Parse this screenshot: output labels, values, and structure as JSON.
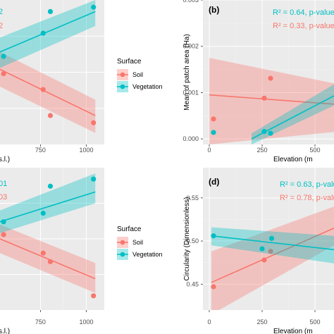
{
  "colors": {
    "soil": "#F8766D",
    "vegetation": "#00BFC4",
    "panel_bg": "#EBEBEB",
    "grid_major": "#FFFFFF",
    "grid_minor": "#F2F2F2"
  },
  "legend_top": {
    "title": "Surface",
    "items": [
      "Soil",
      "Vegetation"
    ]
  },
  "legend_bottom": {
    "title": "Surface",
    "items": [
      "Soil",
      "Vegetation"
    ]
  },
  "chart_data": [
    {
      "id": "a",
      "type": "scatter",
      "title": "",
      "xlabel": "s.l.)",
      "ylabel": "",
      "x_ticks": [
        "750",
        "1000"
      ],
      "xlim": [
        520,
        1100
      ],
      "ylim": [
        0,
        1
      ],
      "stat_labels": [
        {
          "text": "2",
          "series": "Vegetation"
        },
        {
          "text": "2",
          "series": "Soil"
        }
      ],
      "series": [
        {
          "name": "Soil",
          "x": [
            540,
            760,
            800,
            1040
          ],
          "y": [
            0.49,
            0.38,
            0.2,
            0.15
          ],
          "fit": {
            "x": [
              520,
              1050
            ],
            "y": [
              0.52,
              0.2
            ],
            "lower": [
              0.4,
              0.08
            ],
            "upper": [
              0.64,
              0.31
            ]
          }
        },
        {
          "name": "Vegetation",
          "x": [
            540,
            760,
            800,
            1040
          ],
          "y": [
            0.61,
            0.77,
            0.92,
            0.95
          ],
          "fit": {
            "x": [
              520,
              1050
            ],
            "y": [
              0.64,
              0.92
            ],
            "lower": [
              0.53,
              0.82
            ],
            "upper": [
              0.74,
              1.0
            ]
          }
        }
      ]
    },
    {
      "id": "b",
      "type": "scatter",
      "title": "",
      "tag": "(b)",
      "xlabel": "Elevation (m",
      "ylabel": "Mean of patch area (Ha)",
      "x_ticks": [
        "0",
        "250",
        "500"
      ],
      "xlim": [
        -30,
        590
      ],
      "y_ticks": [
        "0.000",
        "0.001",
        "0.002",
        "0.003"
      ],
      "ylim": [
        -0.00012,
        0.003
      ],
      "stat_labels": [
        {
          "text": "R² = 0.64, p-value",
          "series": "Vegetation"
        },
        {
          "text": "R² = 0.33, p-value",
          "series": "Soil"
        }
      ],
      "series": [
        {
          "name": "Soil",
          "x": [
            20,
            260,
            290
          ],
          "y": [
            0.00043,
            0.00088,
            0.00131
          ],
          "fit": {
            "x": [
              0,
              590
            ],
            "y": [
              0.00095,
              0.00075
            ],
            "lower": [
              -0.00012,
              0.00015
            ],
            "upper": [
              0.00175,
              0.0012
            ]
          }
        },
        {
          "name": "Vegetation",
          "x": [
            20,
            260,
            290
          ],
          "y": [
            0.00014,
            0.00016,
            0.00012
          ],
          "fit": {
            "x": [
              200,
              590
            ],
            "y": [
              0.0,
              0.00093
            ],
            "lower": [
              -0.00012,
              0.00072
            ],
            "upper": [
              0.00012,
              0.00118
            ]
          }
        }
      ]
    },
    {
      "id": "c",
      "type": "scatter",
      "title": "",
      "xlabel": "s.l.)",
      "ylabel": "",
      "x_ticks": [
        "750",
        "1000"
      ],
      "xlim": [
        520,
        1100
      ],
      "ylim": [
        0,
        1
      ],
      "stat_labels": [
        {
          "text": "01",
          "series": "Vegetation"
        },
        {
          "text": "03",
          "series": "Soil"
        }
      ],
      "series": [
        {
          "name": "Soil",
          "x": [
            540,
            760,
            800,
            1040
          ],
          "y": [
            0.53,
            0.4,
            0.34,
            0.1
          ],
          "fit": {
            "x": [
              520,
              1050
            ],
            "y": [
              0.5,
              0.22
            ],
            "lower": [
              0.4,
              0.12
            ],
            "upper": [
              0.6,
              0.33
            ]
          }
        },
        {
          "name": "Vegetation",
          "x": [
            540,
            760,
            800,
            1040
          ],
          "y": [
            0.62,
            0.68,
            0.87,
            0.92
          ],
          "fit": {
            "x": [
              520,
              1050
            ],
            "y": [
              0.62,
              0.83
            ],
            "lower": [
              0.54,
              0.75
            ],
            "upper": [
              0.7,
              0.96
            ]
          }
        }
      ]
    },
    {
      "id": "d",
      "type": "scatter",
      "title": "",
      "tag": "(d)",
      "xlabel": "Elevation (m",
      "ylabel": "Circularity (Dimensionless)",
      "x_ticks": [
        "0",
        "250",
        "500"
      ],
      "xlim": [
        -30,
        590
      ],
      "y_ticks": [
        "0.45",
        "0.50",
        "0.55"
      ],
      "ylim": [
        0.42,
        0.585
      ],
      "stat_labels": [
        {
          "text": "R² = 0.63, p-valu",
          "series": "Vegetation"
        },
        {
          "text": "R² = 0.78, p-valu",
          "series": "Soil"
        }
      ],
      "series": [
        {
          "name": "Soil",
          "x": [
            20,
            260,
            290
          ],
          "y": [
            0.447,
            0.478,
            0.488
          ],
          "fit": {
            "x": [
              10,
              590
            ],
            "y": [
              0.452,
              0.515
            ],
            "lower": [
              0.415,
              0.495
            ],
            "upper": [
              0.488,
              0.54
            ]
          }
        },
        {
          "name": "Vegetation",
          "x": [
            20,
            250,
            295
          ],
          "y": [
            0.506,
            0.491,
            0.503
          ],
          "fit": {
            "x": [
              10,
              590
            ],
            "y": [
              0.506,
              0.49
            ],
            "lower": [
              0.495,
              0.474
            ],
            "upper": [
              0.516,
              0.506
            ]
          }
        }
      ]
    }
  ]
}
